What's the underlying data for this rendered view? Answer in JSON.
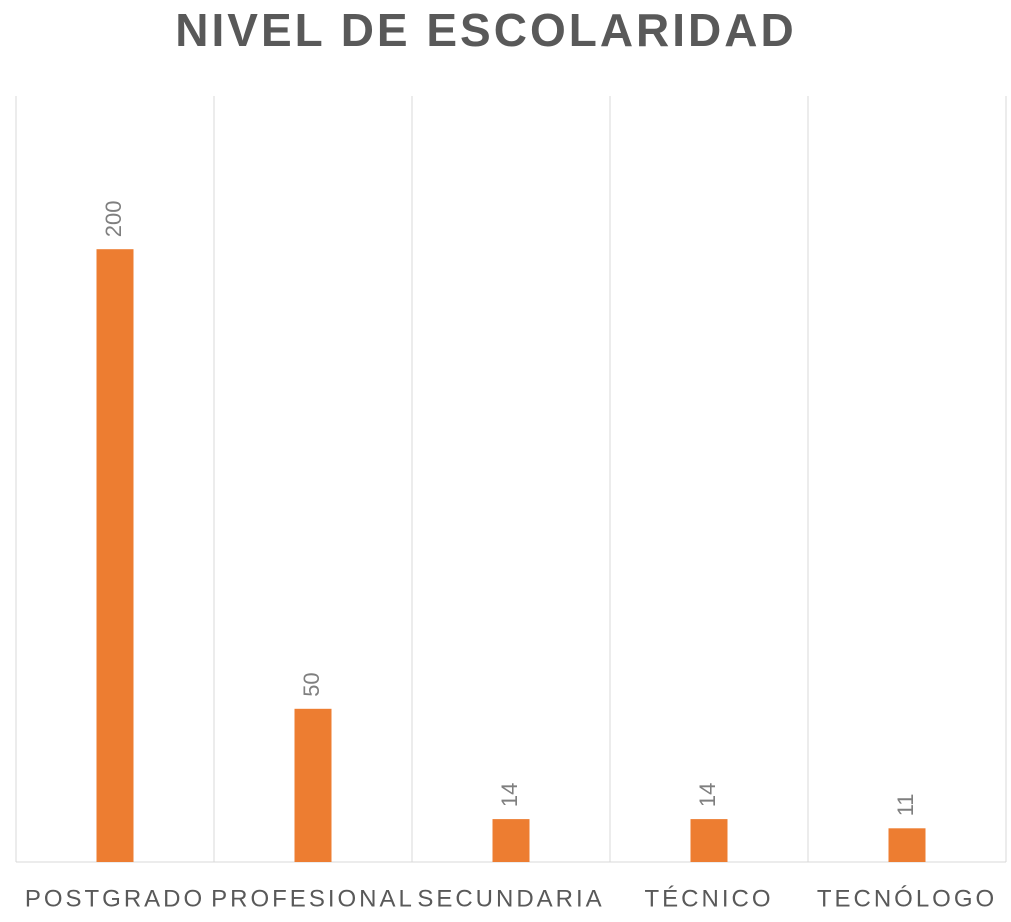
{
  "chart_data": {
    "type": "bar",
    "title": "NIVEL DE ESCOLARIDAD",
    "categories": [
      "POSTGRADO",
      "PROFESIONAL",
      "SECUNDARIA",
      "TÉCNICO",
      "TECNÓLOGO"
    ],
    "values": [
      200,
      50,
      14,
      14,
      11
    ],
    "color": "#ed7d31",
    "ylim": [
      0,
      250
    ]
  }
}
